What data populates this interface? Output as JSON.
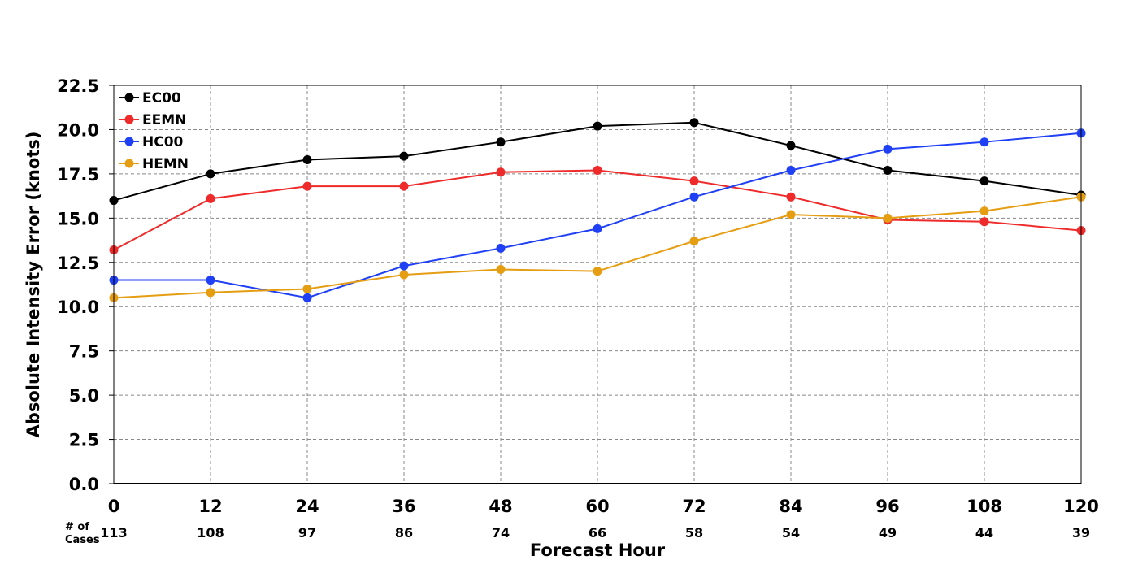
{
  "chart_data": {
    "type": "line",
    "xlabel": "Forecast Hour",
    "ylabel": "Absolute Intensity Error (knots)",
    "x": [
      0,
      12,
      24,
      36,
      48,
      60,
      72,
      84,
      96,
      108,
      120
    ],
    "xlim": [
      0,
      120
    ],
    "ylim": [
      0,
      22.5
    ],
    "yticks": [
      "0.0",
      "2.5",
      "5.0",
      "7.5",
      "10.0",
      "12.5",
      "15.0",
      "17.5",
      "20.0",
      "22.5"
    ],
    "xticks": [
      "0",
      "12",
      "24",
      "36",
      "48",
      "60",
      "72",
      "84",
      "96",
      "108",
      "120"
    ],
    "grid": true,
    "legend_position": "top-left",
    "cases_label": [
      "# of",
      "Cases"
    ],
    "cases": [
      "113",
      "108",
      "97",
      "86",
      "74",
      "66",
      "58",
      "54",
      "49",
      "44",
      "39"
    ],
    "series": [
      {
        "name": "EC00",
        "color": "#000000",
        "values": [
          16.0,
          17.5,
          18.3,
          18.5,
          19.3,
          20.2,
          20.4,
          19.1,
          17.7,
          17.1,
          16.3
        ]
      },
      {
        "name": "EEMN",
        "color": "#ee2a2a",
        "values": [
          13.2,
          16.1,
          16.8,
          16.8,
          17.6,
          17.7,
          17.1,
          16.2,
          14.9,
          14.8,
          14.3
        ]
      },
      {
        "name": "HC00",
        "color": "#2040f5",
        "values": [
          11.5,
          11.5,
          10.5,
          12.3,
          13.3,
          14.4,
          16.2,
          17.7,
          18.9,
          19.3,
          19.8
        ]
      },
      {
        "name": "HEMN",
        "color": "#e59d12",
        "values": [
          10.5,
          10.8,
          11.0,
          11.8,
          12.1,
          12.0,
          13.7,
          15.2,
          15.0,
          15.4,
          16.2
        ]
      }
    ]
  }
}
